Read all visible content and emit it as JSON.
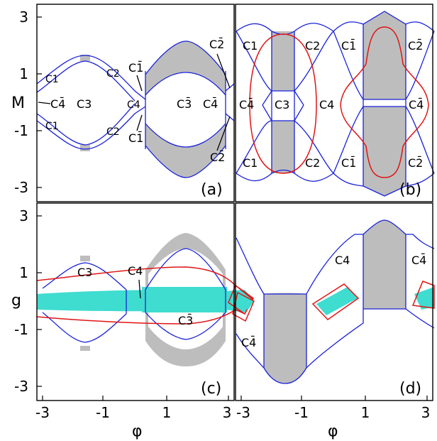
{
  "axes": {
    "top_left_ylabel": "M",
    "bottom_left_ylabel": "g",
    "xlabel_left": "φ",
    "xlabel_right": "φ",
    "yticks_top": [
      "3",
      "1",
      "-1",
      "-3"
    ],
    "yticks_bottom": [
      "3",
      "1",
      "-1",
      "-3"
    ],
    "xticks_left": [
      "-3",
      "-1",
      "1",
      "3"
    ],
    "xticks_right": [
      "-3",
      "-1",
      "1",
      "3"
    ]
  },
  "panels": {
    "a": {
      "tag": "(a)",
      "labels": [
        "C1",
        "C1",
        "C2",
        "C2",
        "C4̄",
        "C3",
        "C4",
        "C1̄",
        "C1̄",
        "C3̄",
        "C4̄",
        "C2̄",
        "C2̄"
      ]
    },
    "b": {
      "tag": "(b)",
      "labels": [
        "C1",
        "C2",
        "C1̄",
        "C2̄",
        "C4̄",
        "C3",
        "C4",
        "C4̄",
        "C1",
        "C2",
        "C1̄",
        "C2̄"
      ]
    },
    "c": {
      "tag": "(c)",
      "labels": [
        "C3",
        "C4",
        "C3̄"
      ]
    },
    "d": {
      "tag": "(d)",
      "labels": [
        "C4",
        "C4̄",
        "C4̄"
      ]
    }
  },
  "colors": {
    "curve": "#1a22d8",
    "red_curve": "#e01515",
    "shaded": "#bdbdbd",
    "cyan_band": "#3fdcd0"
  }
}
